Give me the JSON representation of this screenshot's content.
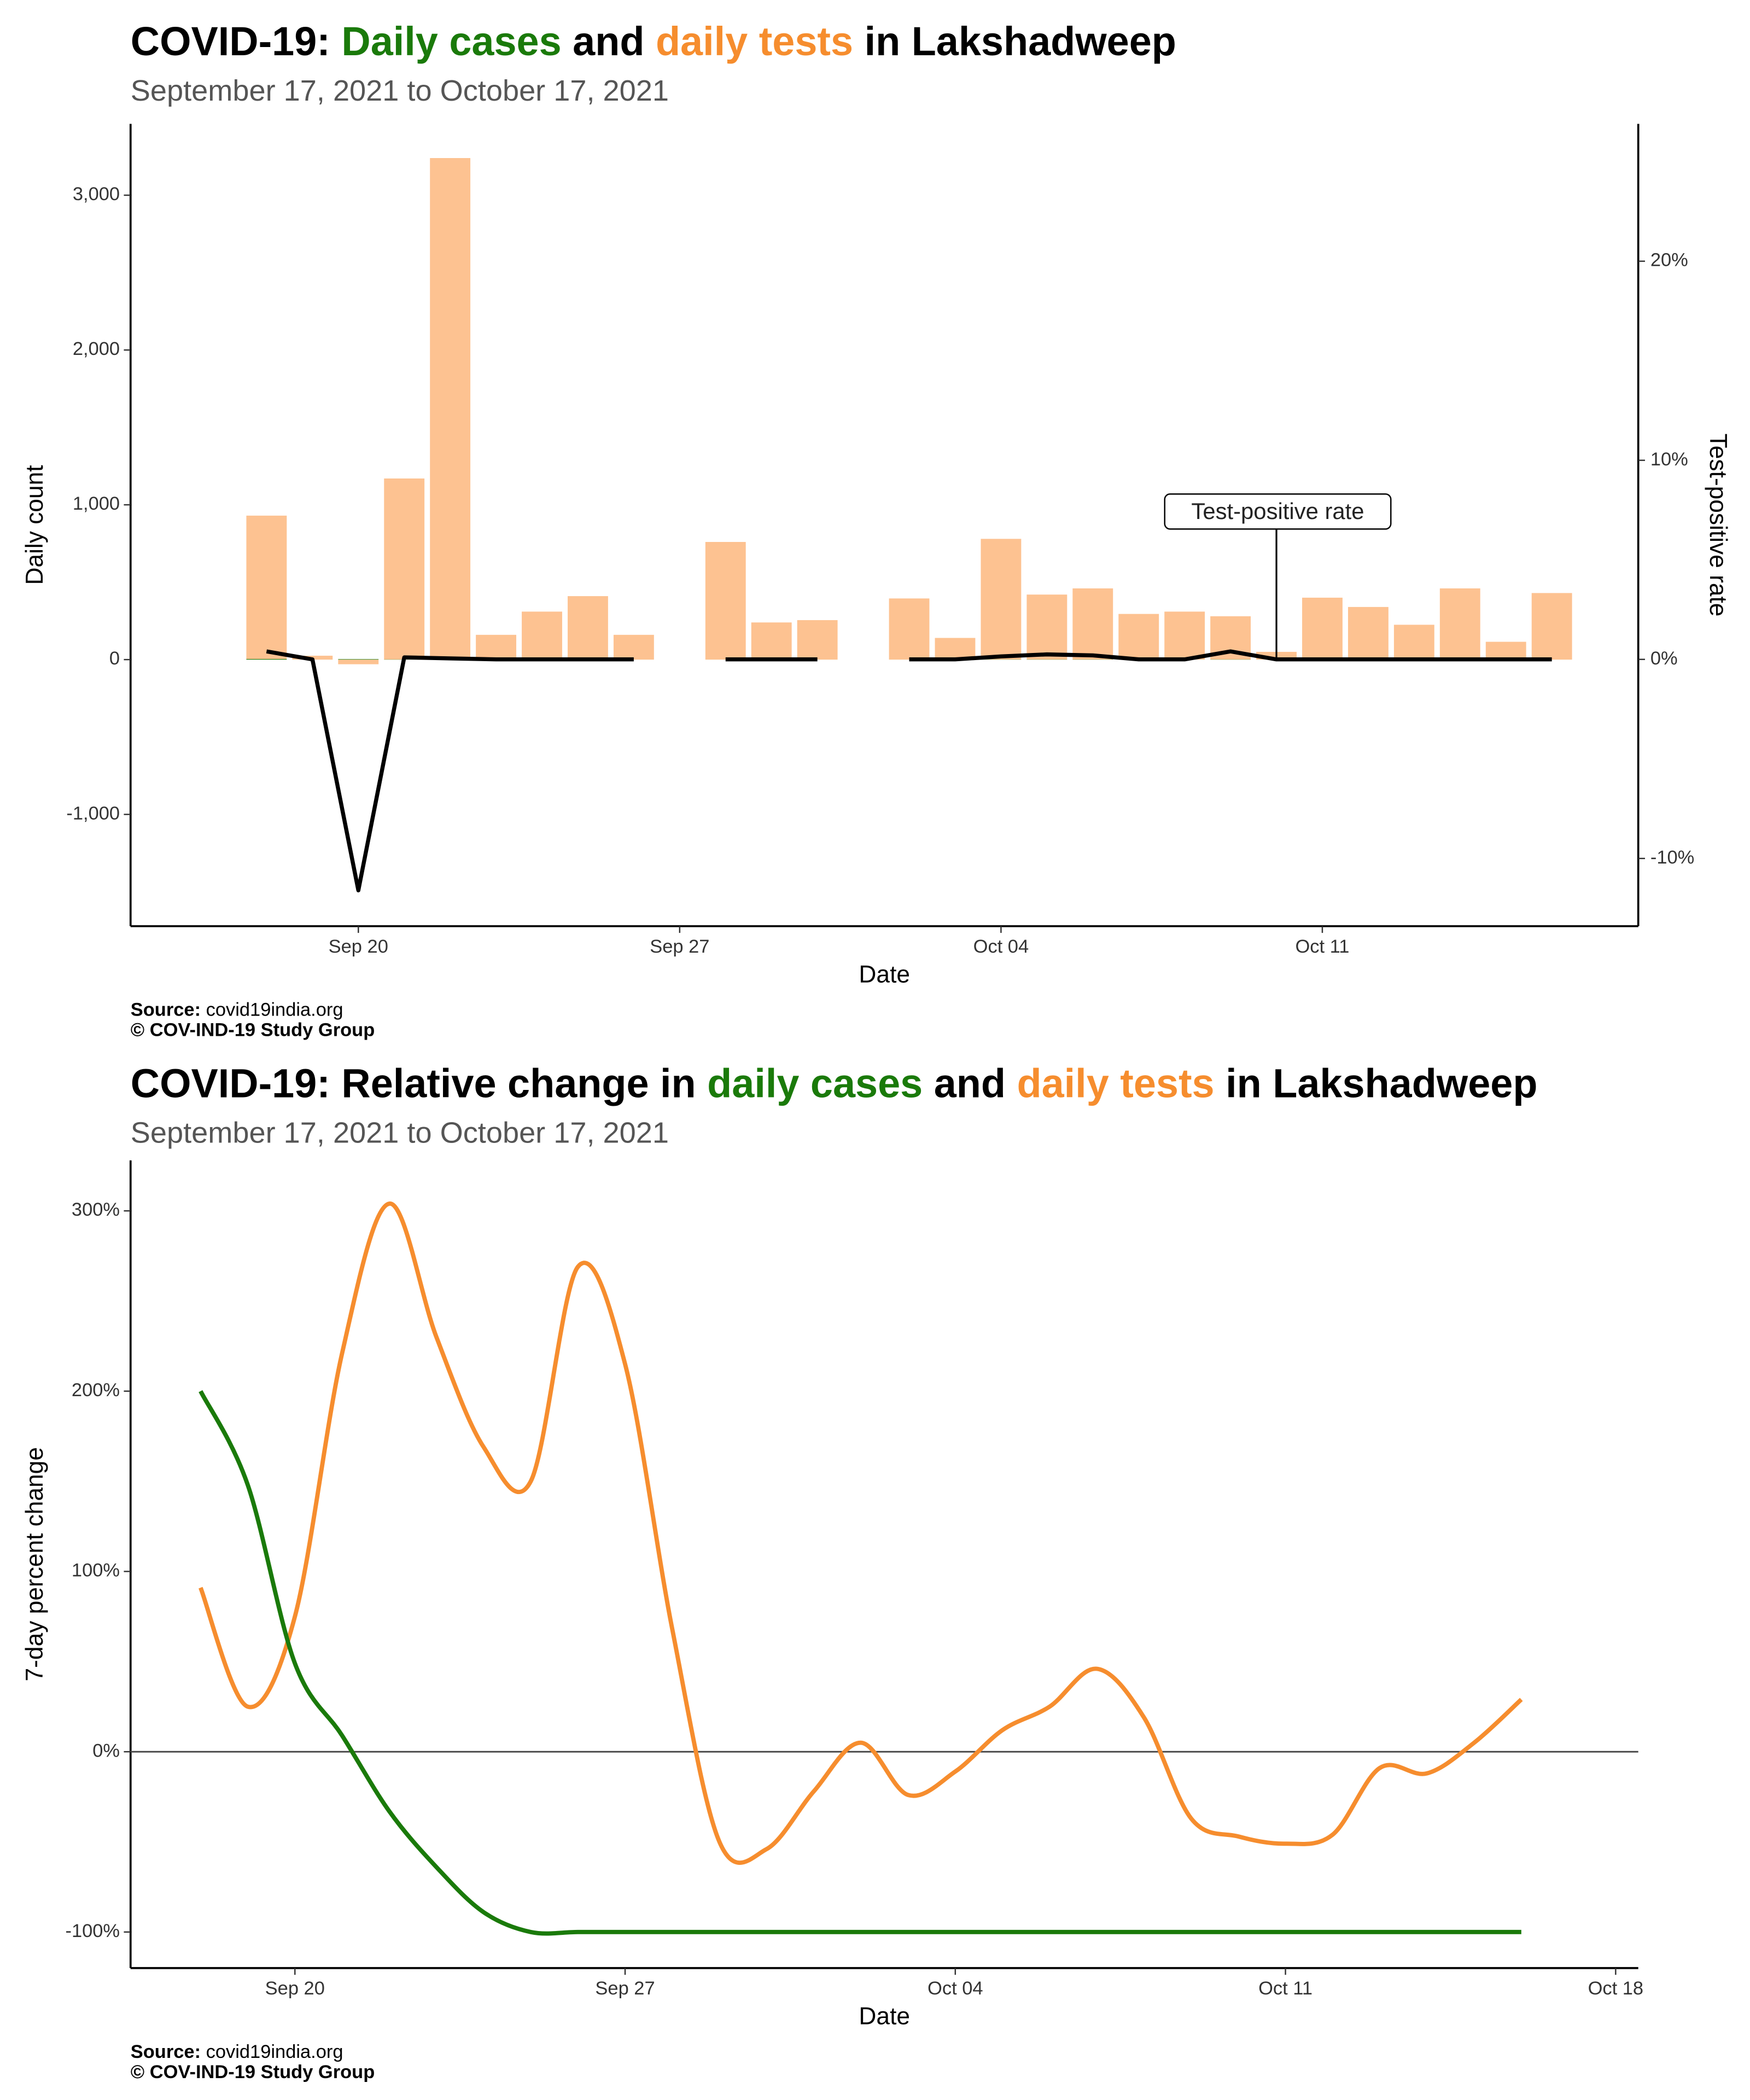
{
  "chart_data": [
    {
      "type": "bar",
      "title": [
        "COVID-19: ",
        "Daily cases",
        " and ",
        "daily tests",
        " in Lakshadweep"
      ],
      "subtitle": "September 17, 2021 to October 17, 2021",
      "x_label": "Date",
      "y_label": "Daily count",
      "y2_label": "Test-positive rate",
      "categories": [
        null,
        null,
        "Sep 20",
        null,
        null,
        null,
        null,
        null,
        null,
        "Sep 27",
        null,
        null,
        null,
        null,
        null,
        null,
        "Oct 04",
        null,
        null,
        null,
        null,
        null,
        null,
        "Oct 11",
        null,
        null,
        null,
        null,
        null
      ],
      "series": [
        {
          "name": "daily tests",
          "color": "#fdc291",
          "title_color": "#f68d2e",
          "values": [
            930,
            25,
            -30,
            1170,
            3240,
            160,
            310,
            410,
            160,
            null,
            760,
            240,
            255,
            null,
            395,
            140,
            780,
            420,
            460,
            295,
            310,
            280,
            50,
            400,
            340,
            225,
            460,
            115,
            430
          ]
        },
        {
          "name": "Daily cases",
          "color": "#1a7a0a",
          "values": [
            4,
            0,
            3,
            1,
            2,
            0,
            0,
            0,
            0,
            null,
            0,
            0,
            0,
            null,
            0,
            0,
            1,
            1,
            1,
            0,
            0,
            1,
            0,
            0,
            0,
            0,
            0,
            0,
            0
          ]
        },
        {
          "name": "Test-positive rate",
          "color": "#000000",
          "axis": "y2",
          "values": [
            0.4,
            0,
            -11.6,
            0.1,
            0.05,
            0,
            0,
            0,
            0,
            null,
            0,
            0,
            0,
            null,
            0,
            0,
            0.15,
            0.25,
            0.2,
            0,
            0,
            0.4,
            0,
            0,
            0,
            0,
            0,
            0,
            0
          ]
        }
      ],
      "ylim": [
        -1722,
        3461
      ],
      "yticks": [
        {
          "value": -1000,
          "label": "-1,000"
        },
        0,
        {
          "value": 1000,
          "label": "1,000"
        },
        {
          "value": 2000,
          "label": "2,000"
        },
        {
          "value": 3000,
          "label": "3,000"
        }
      ],
      "y2lim": [
        -13.4,
        26.9
      ],
      "y2ticks": [
        {
          "value": -10,
          "label": "-10%"
        },
        {
          "value": 0,
          "label": "0%"
        },
        {
          "value": 10,
          "label": "10%"
        },
        {
          "value": 20,
          "label": "20%"
        }
      ],
      "source_label": "Source:",
      "source": "covid19india.org",
      "copyright": "© COV-IND-19 Study Group"
    },
    {
      "type": "line",
      "title": [
        "COVID-19: Relative change in ",
        "daily cases",
        " and ",
        "daily tests",
        " in Lakshadweep"
      ],
      "subtitle": "September 17, 2021 to October 17, 2021",
      "x_label": "Date",
      "y_label": "7-day percent change",
      "categories": [
        null,
        null,
        "Sep 20",
        null,
        null,
        null,
        null,
        null,
        null,
        "Sep 27",
        null,
        null,
        null,
        null,
        null,
        null,
        "Oct 04",
        null,
        null,
        null,
        null,
        null,
        null,
        "Oct 11",
        null,
        null,
        null,
        null,
        null,
        null,
        "Oct 18"
      ],
      "series": [
        {
          "name": "daily tests",
          "color": "#f68d2e",
          "values": [
            91,
            25,
            75,
            221,
            304,
            230,
            169,
            150,
            269,
            215,
            68,
            -50,
            -54,
            -22,
            5,
            -24,
            -11,
            12,
            25,
            46,
            19,
            -37,
            -47,
            -51,
            -46,
            -9,
            -12,
            5,
            29,
            null,
            null
          ]
        },
        {
          "name": "daily cases",
          "color": "#1a7a0a",
          "values": [
            200,
            148,
            49,
            9,
            -33,
            -64,
            -89,
            -100,
            -100,
            -100,
            -100,
            -100,
            -100,
            -100,
            -100,
            -100,
            -100,
            -100,
            -100,
            -100,
            -100,
            -100,
            -100,
            -100,
            -100,
            -100,
            -100,
            -100,
            -100,
            null,
            null
          ]
        }
      ],
      "ylim": [
        -120,
        328
      ],
      "yticks": [
        {
          "value": -100,
          "label": "-100%"
        },
        {
          "value": 0,
          "label": "0%"
        },
        {
          "value": 100,
          "label": "100%"
        },
        {
          "value": 200,
          "label": "200%"
        },
        {
          "value": 300,
          "label": "300%"
        }
      ],
      "source_label": "Source:",
      "source": "covid19india.org",
      "copyright": "© COV-IND-19 Study Group"
    }
  ]
}
